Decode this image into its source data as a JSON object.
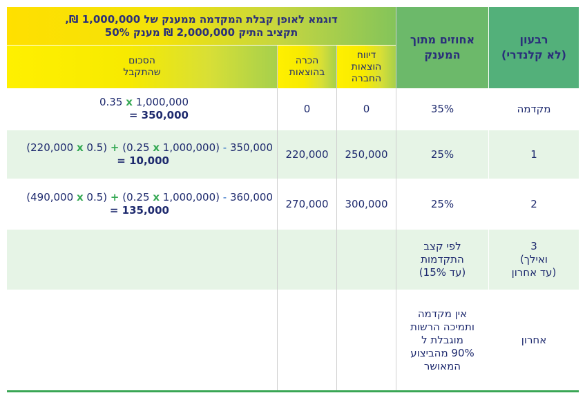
{
  "header": {
    "quarter": "רבעון\n(לא קלנדרי)",
    "percent": "אחוזים מתוך\nהמענק",
    "example_title": "דוגמא לאופן קבלת המקדמה ממענק של 1,000,000 ₪,\nתקציב התיק 2,000,000 ₪ מענק 50%",
    "reported": "דיווח\nהוצאות\nהחברה",
    "recognized": "הכרה\nבהוצאות",
    "received": "הסכום\nשהתקבל"
  },
  "rows": [
    {
      "quarter": "מקדמה",
      "percent": "35%",
      "reported": "0",
      "recognized": "0",
      "calc": {
        "a": "0.35",
        "x1": "x",
        "b": "1,000,000",
        "result": "350,000",
        "eq": "="
      }
    },
    {
      "quarter": "1",
      "percent": "25%",
      "reported": "250,000",
      "recognized": "220,000",
      "calc": {
        "p1": "(220,000",
        "x1": "x",
        "p2": "0.5)",
        "plus": "+",
        "p3": "(0.25",
        "x2": "x",
        "p4": "1,000,000)",
        "minus": "-",
        "p5": "350,000",
        "eq": "=",
        "result": "10,000"
      }
    },
    {
      "quarter": "2",
      "percent": "25%",
      "reported": "300,000",
      "recognized": "270,000",
      "calc": {
        "p1": "(490,000",
        "x1": "x",
        "p2": "0.5)",
        "plus": "+",
        "p3": "(0.25",
        "x2": "x",
        "p4": "1,000,000)",
        "minus": "-",
        "p5": "360,000",
        "eq": "=",
        "result": "135,000"
      }
    },
    {
      "quarter": "3\n(ואילך\nעד אחרון)",
      "percent": "לפי קצב\nהתקדמות\n(עד 15%)"
    },
    {
      "quarter": "אחרון",
      "percent": "אין מקדמה\nותמיכה הרשות\nמוגבלת ל\n90% מהביצוע\nהמאושר"
    }
  ]
}
